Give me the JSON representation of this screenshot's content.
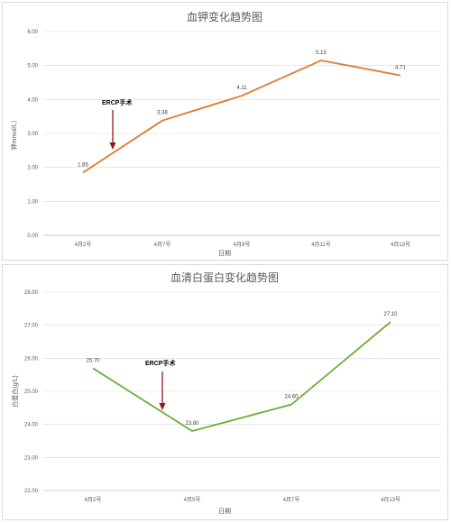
{
  "chart_data": [
    {
      "type": "line",
      "title": "血钾变化趋势图",
      "xlabel": "日期",
      "ylabel": "钾mmol/L）",
      "categories": [
        "4月2号",
        "4月7号",
        "4月8号",
        "4月11号",
        "4月13号"
      ],
      "values": [
        1.85,
        3.38,
        4.11,
        5.15,
        4.71
      ],
      "data_labels": [
        "1.85",
        "3.38",
        "4.11",
        "5.15",
        "4.71"
      ],
      "ylim": [
        0,
        6
      ],
      "yticks": [
        "0.00",
        "1.00",
        "2.00",
        "3.00",
        "4.00",
        "5.00",
        "6.00"
      ],
      "grid": true,
      "color": "#E07B2A",
      "annotation": {
        "text": "ERCP手术",
        "color": "#8B1A1A"
      }
    },
    {
      "type": "line",
      "title": "血清白蛋白变化趋势图",
      "xlabel": "日期",
      "ylabel": "白蛋白(g/L)",
      "categories": [
        "4月2号",
        "4月5号",
        "4月7号",
        "4月13号"
      ],
      "values": [
        25.7,
        23.8,
        24.6,
        27.1
      ],
      "data_labels": [
        "25.70",
        "23.80",
        "24.60",
        "27.10"
      ],
      "ylim": [
        22,
        28
      ],
      "yticks": [
        "22.00",
        "23.00",
        "24.00",
        "25.00",
        "26.00",
        "27.00",
        "28.00"
      ],
      "grid": true,
      "color": "#6AAF35",
      "annotation": {
        "text": "ERCP手术",
        "color": "#8B1A1A"
      }
    }
  ]
}
